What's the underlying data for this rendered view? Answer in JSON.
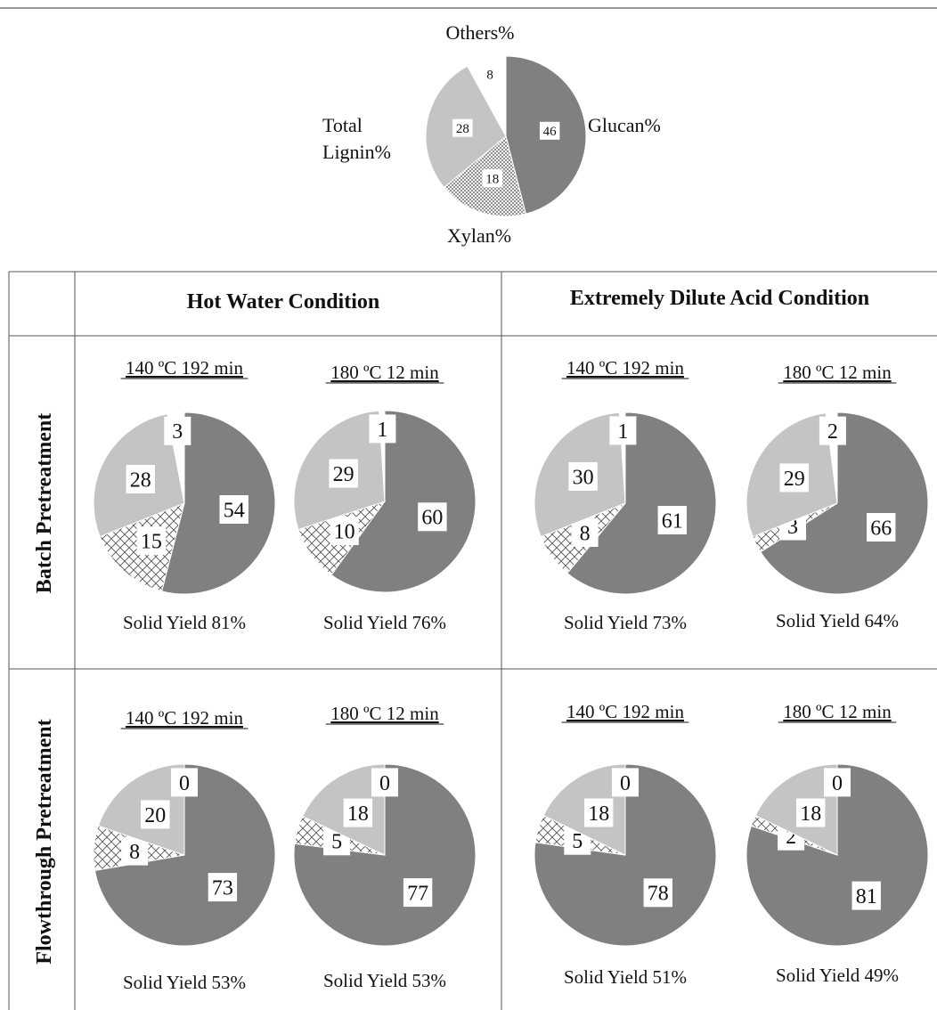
{
  "chart_data": {
    "type": "pie",
    "legend_chart": {
      "values": [
        46,
        18,
        28,
        8
      ],
      "labels": [
        "Glucan%",
        "Xylan%",
        "Total Lignin%",
        "Others%"
      ],
      "value_labels": [
        "46",
        "18",
        "28",
        "8"
      ]
    },
    "components": [
      "Glucan%",
      "Xylan%",
      "Total Lignin%",
      "Others%"
    ],
    "fills": {
      "glucan": "#808080",
      "xylan": "crosshatch",
      "lignin": "#c4c4c4",
      "others": "#ffffff"
    },
    "column_headers": [
      "Hot Water Condition",
      "Extremely Dilute Acid Condition"
    ],
    "row_headers": [
      "Batch Pretreatment",
      "Flowthrough Pretreatment"
    ],
    "panels": [
      {
        "row": 0,
        "col": 0,
        "condition": "140 ºC 192 min",
        "values": [
          54,
          15,
          28,
          3
        ],
        "value_labels": [
          "54",
          "15",
          "28",
          "3"
        ],
        "yield": "Solid Yield 81%"
      },
      {
        "row": 0,
        "col": 1,
        "condition": "180 ºC 12 min",
        "values": [
          60,
          10,
          29,
          1
        ],
        "value_labels": [
          "60",
          "10",
          "29",
          "1"
        ],
        "yield": "Solid Yield 76%"
      },
      {
        "row": 0,
        "col": 2,
        "condition": "140 ºC 192 min",
        "values": [
          61,
          8,
          30,
          1
        ],
        "value_labels": [
          "61",
          "8",
          "30",
          "1"
        ],
        "yield": "Solid Yield 73%"
      },
      {
        "row": 0,
        "col": 3,
        "condition": "180 ºC 12 min",
        "values": [
          66,
          3,
          29,
          2
        ],
        "value_labels": [
          "66",
          "3",
          "29",
          "2"
        ],
        "yield": "Solid Yield 64%"
      },
      {
        "row": 1,
        "col": 0,
        "condition": "140 ºC 192 min",
        "values": [
          73,
          8,
          20,
          0
        ],
        "value_labels": [
          "73",
          "8",
          "20",
          "0"
        ],
        "yield": "Solid Yield 53%"
      },
      {
        "row": 1,
        "col": 1,
        "condition": "180 ºC 12 min",
        "values": [
          77,
          5,
          18,
          0
        ],
        "value_labels": [
          "77",
          "5",
          "18",
          "0"
        ],
        "yield": "Solid Yield 53%"
      },
      {
        "row": 1,
        "col": 2,
        "condition": "140 ºC 192 min",
        "values": [
          78,
          5,
          18,
          0
        ],
        "value_labels": [
          "78",
          "5",
          "18",
          "0"
        ],
        "yield": "Solid Yield 51%"
      },
      {
        "row": 1,
        "col": 3,
        "condition": "180 ºC 12 min",
        "values": [
          81,
          2,
          18,
          0
        ],
        "value_labels": [
          "81",
          "2",
          "18",
          "0"
        ],
        "yield": "Solid Yield 49%"
      }
    ]
  }
}
